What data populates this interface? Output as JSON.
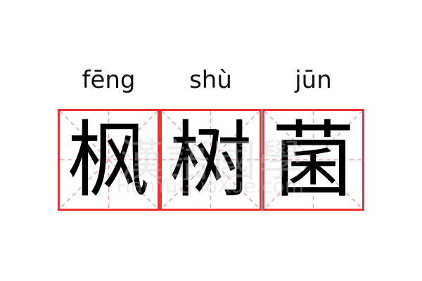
{
  "entries": [
    {
      "pinyin": "fēng",
      "char": "枫"
    },
    {
      "pinyin": "shù",
      "char": "树"
    },
    {
      "pinyin": "jūn",
      "char": "菌"
    }
  ],
  "watermark": {
    "chinese": "漢語國學",
    "latin": "HanYuGuoXue.com"
  },
  "colors": {
    "grid_border": "#f03030",
    "guide_lines": "#f5a0a0"
  }
}
